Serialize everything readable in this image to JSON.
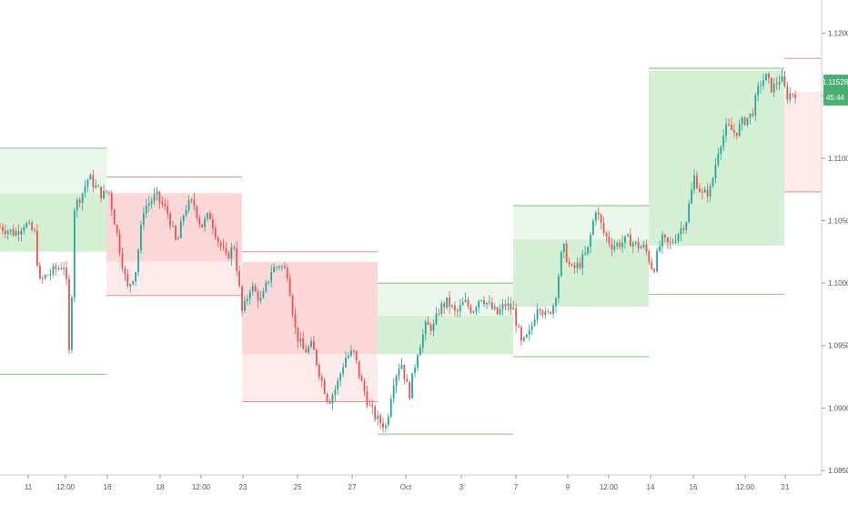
{
  "chart_data": {
    "type": "candlestick",
    "title": "",
    "xlabel": "",
    "ylabel": "",
    "ylim": [
      1.08463,
      1.12267
    ],
    "x_tick_labels": [
      "11",
      "12:00",
      "16",
      "18",
      "12:00",
      "23",
      "25",
      "27",
      "Oct",
      "3",
      "7",
      "9",
      "12:00",
      "14",
      "16",
      "12:00",
      "21"
    ],
    "y_tick_labels": [
      "1.12000",
      "1.11500",
      "1.11000",
      "1.10500",
      "1.10000",
      "1.09500",
      "1.09000",
      "1.08500"
    ],
    "last_price": "1.11528",
    "countdown": "45:44",
    "grid": false,
    "colors": {
      "bull": "#26a69a",
      "bear": "#ef5350",
      "bull_zone": "#d5efd5",
      "bear_zone": "#fcd7d7",
      "bull_zone_light": "#eaf7ea",
      "bear_zone_light": "#fdeaea",
      "bull_line": "#7cc47c",
      "bear_line": "#e88c8c",
      "price_badge": "#4caf72"
    },
    "weekly_zones": [
      {
        "open": 1.1072,
        "close": 1.1025,
        "high": 1.1108,
        "low": 1.0927,
        "dir": "up"
      },
      {
        "open": 1.1072,
        "close": 1.1017,
        "high": 1.1085,
        "low": 1.099,
        "dir": "down"
      },
      {
        "open": 1.1017,
        "close": 1.0943,
        "high": 1.1025,
        "low": 1.0905,
        "dir": "down"
      },
      {
        "open": 1.0943,
        "close": 1.0974,
        "high": 1.1,
        "low": 1.0879,
        "dir": "up"
      },
      {
        "open": 1.0981,
        "close": 1.1035,
        "high": 1.1062,
        "low": 1.0941,
        "dir": "up"
      },
      {
        "open": 1.103,
        "close": 1.117,
        "high": 1.1172,
        "low": 1.0991,
        "dir": "up"
      },
      {
        "open": 1.1153,
        "close": 1.1153,
        "high": 1.118,
        "low": 1.1073,
        "dir": "down"
      }
    ],
    "price_path": [
      [
        0.0,
        1.1045
      ],
      [
        0.018,
        1.104
      ],
      [
        0.03,
        1.1048
      ],
      [
        0.042,
        1.104
      ],
      [
        0.048,
        1.1
      ],
      [
        0.055,
        1.1005
      ],
      [
        0.07,
        1.1012
      ],
      [
        0.08,
        1.1015
      ],
      [
        0.085,
        1.093
      ],
      [
        0.09,
        1.106
      ],
      [
        0.1,
        1.1072
      ],
      [
        0.108,
        1.1085
      ],
      [
        0.115,
        1.1078
      ],
      [
        0.125,
        1.107
      ],
      [
        0.132,
        1.1075
      ],
      [
        0.145,
        1.103
      ],
      [
        0.155,
        1.0995
      ],
      [
        0.165,
        1.101
      ],
      [
        0.175,
        1.106
      ],
      [
        0.19,
        1.107
      ],
      [
        0.205,
        1.1055
      ],
      [
        0.215,
        1.103
      ],
      [
        0.225,
        1.106
      ],
      [
        0.235,
        1.1065
      ],
      [
        0.245,
        1.1045
      ],
      [
        0.255,
        1.1055
      ],
      [
        0.265,
        1.1035
      ],
      [
        0.275,
        1.102
      ],
      [
        0.285,
        1.103
      ],
      [
        0.295,
        1.0975
      ],
      [
        0.305,
        1.0998
      ],
      [
        0.318,
        1.0985
      ],
      [
        0.33,
        1.101
      ],
      [
        0.34,
        1.1015
      ],
      [
        0.35,
        1.1008
      ],
      [
        0.36,
        1.096
      ],
      [
        0.37,
        1.0945
      ],
      [
        0.38,
        1.095
      ],
      [
        0.39,
        1.0925
      ],
      [
        0.4,
        1.0905
      ],
      [
        0.41,
        1.0918
      ],
      [
        0.42,
        1.094
      ],
      [
        0.43,
        1.0945
      ],
      [
        0.44,
        1.092
      ],
      [
        0.45,
        1.09
      ],
      [
        0.46,
        1.089
      ],
      [
        0.47,
        1.0885
      ],
      [
        0.478,
        1.092
      ],
      [
        0.488,
        1.0938
      ],
      [
        0.498,
        1.091
      ],
      [
        0.508,
        1.0945
      ],
      [
        0.518,
        1.0965
      ],
      [
        0.528,
        1.0965
      ],
      [
        0.535,
        1.098
      ],
      [
        0.545,
        1.0985
      ],
      [
        0.555,
        1.0975
      ],
      [
        0.565,
        1.0985
      ],
      [
        0.575,
        1.0978
      ],
      [
        0.585,
        1.099
      ],
      [
        0.595,
        1.0982
      ],
      [
        0.605,
        1.0975
      ],
      [
        0.615,
        1.0983
      ],
      [
        0.625,
        1.0978
      ],
      [
        0.635,
        1.095
      ],
      [
        0.645,
        1.096
      ],
      [
        0.655,
        1.0985
      ],
      [
        0.665,
        1.0972
      ],
      [
        0.675,
        1.0985
      ],
      [
        0.685,
        1.103
      ],
      [
        0.695,
        1.101
      ],
      [
        0.705,
        1.1015
      ],
      [
        0.715,
        1.1025
      ],
      [
        0.725,
        1.106
      ],
      [
        0.735,
        1.104
      ],
      [
        0.745,
        1.103
      ],
      [
        0.755,
        1.1032
      ],
      [
        0.765,
        1.1035
      ],
      [
        0.775,
        1.103
      ],
      [
        0.785,
        1.1028
      ],
      [
        0.795,
        1.101
      ],
      [
        0.805,
        1.1035
      ],
      [
        0.815,
        1.103
      ],
      [
        0.825,
        1.104
      ],
      [
        0.835,
        1.105
      ],
      [
        0.845,
        1.1085
      ],
      [
        0.855,
        1.107
      ],
      [
        0.865,
        1.1075
      ],
      [
        0.875,
        1.111
      ],
      [
        0.885,
        1.1125
      ],
      [
        0.895,
        1.112
      ],
      [
        0.905,
        1.113
      ],
      [
        0.915,
        1.1135
      ],
      [
        0.925,
        1.116
      ],
      [
        0.932,
        1.1165
      ],
      [
        0.94,
        1.1155
      ],
      [
        0.95,
        1.1165
      ],
      [
        0.958,
        1.115
      ],
      [
        0.968,
        1.1153
      ]
    ]
  }
}
